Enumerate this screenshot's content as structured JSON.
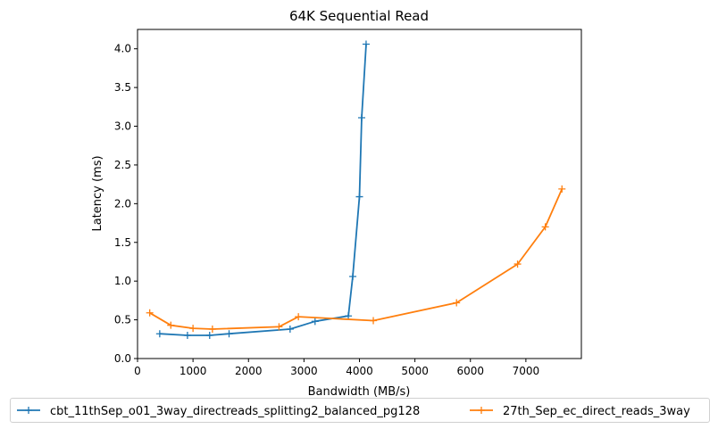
{
  "chart_data": {
    "type": "line",
    "title": "64K  Sequential Read",
    "xlabel": "Bandwidth (MB/s)",
    "ylabel": "Latency (ms)",
    "xlim": [
      0,
      8000
    ],
    "ylim": [
      0,
      4.25
    ],
    "xticks": [
      0,
      1000,
      2000,
      3000,
      4000,
      5000,
      6000,
      7000
    ],
    "xtick_labels": [
      "0",
      "1000",
      "2000",
      "3000",
      "4000",
      "5000",
      "6000",
      "7000"
    ],
    "yticks": [
      0.0,
      0.5,
      1.0,
      1.5,
      2.0,
      2.5,
      3.0,
      3.5,
      4.0
    ],
    "ytick_labels": [
      "0.0",
      "0.5",
      "1.0",
      "1.5",
      "2.0",
      "2.5",
      "3.0",
      "3.5",
      "4.0"
    ],
    "grid": false,
    "legend_position": "bottom-outside",
    "series": [
      {
        "name": "cbt_11thSep_o01_3way_directreads_splitting2_balanced_pg128",
        "color": "#1f77b4",
        "marker": "plus",
        "x": [
          400,
          900,
          1300,
          1650,
          2750,
          3200,
          3800,
          3880,
          4000,
          4040,
          4120
        ],
        "y": [
          0.32,
          0.3,
          0.3,
          0.32,
          0.38,
          0.48,
          0.55,
          1.06,
          2.09,
          3.11,
          4.06
        ]
      },
      {
        "name": "27th_Sep_ec_direct_reads_3way",
        "color": "#ff7f0e",
        "marker": "plus",
        "x": [
          220,
          600,
          1000,
          1350,
          2550,
          2900,
          4250,
          5750,
          6850,
          7350,
          7650
        ],
        "y": [
          0.59,
          0.43,
          0.39,
          0.38,
          0.41,
          0.54,
          0.49,
          0.72,
          1.22,
          1.7,
          2.19
        ]
      }
    ]
  }
}
